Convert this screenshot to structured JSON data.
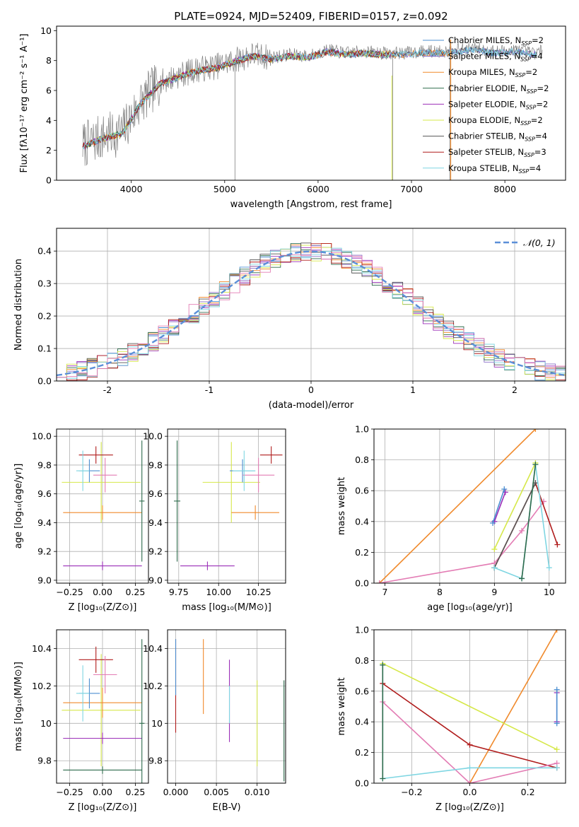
{
  "figure_title": "PLATE=0924, MJD=52409, FIBERID=0157, z=0.092",
  "colors": {
    "Chabrier MILES": "#4c8fd1",
    "Salpeter MILES": "#8a6fc7",
    "Kroupa MILES": "#f08a2c",
    "Chabrier ELODIE": "#2e6b4c",
    "Salpeter ELODIE": "#9b2fb8",
    "Kroupa ELODIE": "#d6e84a",
    "Chabrier STELIB": "#555555",
    "Salpeter STELIB": "#b01c1c",
    "Kroupa STELIB": "#7fd6e2",
    "pink": "#e37cb4",
    "gauss": "#5b8fd8"
  },
  "chart_data": [
    {
      "id": "spectrum",
      "type": "line",
      "title": "PLATE=0924, MJD=52409, FIBERID=0157, z=0.092",
      "xlabel": "wavelength [Angstrom, rest frame]",
      "ylabel": "Flux [fλ10⁻¹⁷ erg cm⁻² s⁻¹ A⁻¹]",
      "xlim": [
        3200,
        8650
      ],
      "ylim": [
        0,
        10.3
      ],
      "xticks": [
        4000,
        5000,
        6000,
        7000,
        8000
      ],
      "yticks": [
        0,
        2,
        4,
        6,
        8,
        10
      ],
      "data_x": [
        3500,
        3700,
        3900,
        4100,
        4300,
        4500,
        4700,
        4900,
        5100,
        5300,
        5500,
        5700,
        5900,
        6100,
        6300,
        6500,
        6700,
        6900,
        7100,
        7300,
        7500,
        7700,
        7900,
        8100,
        8300,
        8400
      ],
      "data_y": [
        2.4,
        2.9,
        3.2,
        5.2,
        6.5,
        7.0,
        7.4,
        7.6,
        8.0,
        8.4,
        8.2,
        8.4,
        8.3,
        8.7,
        8.5,
        8.6,
        8.5,
        8.5,
        8.6,
        8.6,
        8.7,
        8.8,
        8.6,
        8.7,
        8.5,
        8.6
      ],
      "legend": [
        {
          "label": "Chabrier MILES, N",
          "sub": "SSP",
          "suffix": "=2"
        },
        {
          "label": "Salpeter MILES, N",
          "sub": "SSP",
          "suffix": "=4"
        },
        {
          "label": "Kroupa MILES, N",
          "sub": "SSP",
          "suffix": "=2"
        },
        {
          "label": "Chabrier ELODIE, N",
          "sub": "SSP",
          "suffix": "=2"
        },
        {
          "label": "Salpeter ELODIE, N",
          "sub": "SSP",
          "suffix": "=2"
        },
        {
          "label": "Kroupa ELODIE, N",
          "sub": "SSP",
          "suffix": "=2"
        },
        {
          "label": "Chabrier STELIB, N",
          "sub": "SSP",
          "suffix": "=4"
        },
        {
          "label": "Salpeter STELIB, N",
          "sub": "SSP",
          "suffix": "=3"
        },
        {
          "label": "Kroupa STELIB, N",
          "sub": "SSP",
          "suffix": "=4"
        }
      ],
      "legend_placement": "right"
    },
    {
      "id": "residuals",
      "type": "line",
      "xlabel": "(data-model)/error",
      "ylabel": "Normed distribution",
      "xlim": [
        -2.5,
        2.5
      ],
      "ylim": [
        0,
        0.47
      ],
      "xticks": [
        -2,
        -1,
        0,
        1,
        2
      ],
      "yticks": [
        0.0,
        0.1,
        0.2,
        0.3,
        0.4
      ],
      "gaussian_label": "𝒩(0, 1)",
      "legend_placement": "top-right",
      "grid": true
    },
    {
      "id": "age_vs_Z",
      "type": "scatter",
      "xlabel": "Z [log₁₀(Z/Z⊙)]",
      "ylabel": "age  [log₁₀(age/yr)]",
      "xlim": [
        -0.35,
        0.35
      ],
      "ylim": [
        8.98,
        10.05
      ],
      "xticks": [
        -0.25,
        0.0,
        0.25
      ],
      "xtick_labels": [
        "−0.25",
        "0.00",
        "0.25"
      ],
      "yticks": [
        9.0,
        9.2,
        9.4,
        9.6,
        9.8,
        10.0
      ],
      "points": [
        {
          "x": -0.01,
          "y": 9.68,
          "xerr": 0.3,
          "yerr": 0.28,
          "c": "Kroupa ELODIE"
        },
        {
          "x": 0.0,
          "y": 9.47,
          "xerr": 0.3,
          "yerr": 0.05,
          "c": "Kroupa MILES"
        },
        {
          "x": -0.1,
          "y": 9.76,
          "xerr": 0.08,
          "yerr": 0.08,
          "c": "Chabrier MILES"
        },
        {
          "x": -0.05,
          "y": 9.87,
          "xerr": 0.13,
          "yerr": 0.06,
          "c": "Salpeter STELIB"
        },
        {
          "x": 0.02,
          "y": 9.73,
          "xerr": 0.09,
          "yerr": 0.12,
          "c": "pink"
        },
        {
          "x": -0.15,
          "y": 9.76,
          "xerr": 0.05,
          "yerr": 0.14,
          "c": "Kroupa STELIB"
        },
        {
          "x": 0.0,
          "y": 9.1,
          "xerr": 0.3,
          "yerr": 0.03,
          "c": "Salpeter ELODIE"
        },
        {
          "x": 0.3,
          "y": 9.55,
          "xerr": 0.02,
          "yerr": 0.42,
          "c": "Chabrier ELODIE"
        }
      ],
      "grid": true
    },
    {
      "id": "age_vs_mass",
      "type": "scatter",
      "xlabel": "mass [log₁₀(M/M⊙)]",
      "xlim": [
        9.68,
        10.42
      ],
      "ylim": [
        8.98,
        10.05
      ],
      "xticks": [
        9.75,
        10.0,
        10.25
      ],
      "xtick_labels": [
        "9.75",
        "10.00",
        "10.25"
      ],
      "yticks": [
        9.0,
        9.2,
        9.4,
        9.6,
        9.8,
        10.0
      ],
      "points": [
        {
          "x": 10.08,
          "y": 9.68,
          "xerr": 0.18,
          "yerr": 0.28,
          "c": "Kroupa ELODIE"
        },
        {
          "x": 10.23,
          "y": 9.47,
          "xerr": 0.15,
          "yerr": 0.05,
          "c": "Kroupa MILES"
        },
        {
          "x": 10.15,
          "y": 9.76,
          "xerr": 0.08,
          "yerr": 0.08,
          "c": "Chabrier MILES"
        },
        {
          "x": 10.33,
          "y": 9.87,
          "xerr": 0.07,
          "yerr": 0.06,
          "c": "Salpeter STELIB"
        },
        {
          "x": 10.25,
          "y": 9.73,
          "xerr": 0.1,
          "yerr": 0.12,
          "c": "pink"
        },
        {
          "x": 10.16,
          "y": 9.76,
          "xerr": 0.07,
          "yerr": 0.14,
          "c": "Kroupa STELIB"
        },
        {
          "x": 9.93,
          "y": 9.1,
          "xerr": 0.17,
          "yerr": 0.03,
          "c": "Salpeter ELODIE"
        },
        {
          "x": 9.74,
          "y": 9.55,
          "xerr": 0.02,
          "yerr": 0.42,
          "c": "Chabrier ELODIE"
        }
      ],
      "grid": true
    },
    {
      "id": "weight_vs_age",
      "type": "line",
      "xlabel": "age  [log₁₀(age/yr)]",
      "ylabel": "mass weight",
      "xlim": [
        6.8,
        10.3
      ],
      "ylim": [
        0,
        1.0
      ],
      "xticks": [
        7,
        8,
        9,
        10
      ],
      "yticks": [
        0.0,
        0.2,
        0.4,
        0.6,
        0.8,
        1.0
      ],
      "series": [
        {
          "c": "Kroupa MILES",
          "x": [
            6.9,
            9.75
          ],
          "y": [
            0.0,
            1.0
          ]
        },
        {
          "c": "pink",
          "x": [
            6.9,
            9.0,
            9.5,
            9.9
          ],
          "y": [
            0.0,
            0.13,
            0.34,
            0.53
          ]
        },
        {
          "c": "Kroupa ELODIE",
          "x": [
            9.0,
            9.75
          ],
          "y": [
            0.22,
            0.78
          ]
        },
        {
          "c": "Salpeter STELIB",
          "x": [
            9.0,
            9.75,
            10.15
          ],
          "y": [
            0.1,
            0.65,
            0.25
          ]
        },
        {
          "c": "Chabrier STELIB",
          "x": [
            9.0,
            9.75
          ],
          "y": [
            0.1,
            0.65
          ]
        },
        {
          "c": "Kroupa STELIB",
          "x": [
            9.0,
            9.5,
            9.75,
            10.0
          ],
          "y": [
            0.1,
            0.03,
            0.77,
            0.1
          ]
        },
        {
          "c": "Chabrier ELODIE",
          "x": [
            9.5,
            9.75
          ],
          "y": [
            0.03,
            0.77
          ]
        },
        {
          "c": "Salpeter ELODIE",
          "x": [
            9.0,
            9.2
          ],
          "y": [
            0.4,
            0.59
          ]
        },
        {
          "c": "Chabrier MILES",
          "x": [
            8.97,
            9.18
          ],
          "y": [
            0.39,
            0.61
          ]
        }
      ],
      "grid": true
    },
    {
      "id": "mass_vs_Z",
      "type": "scatter",
      "xlabel": "Z [log₁₀(Z/Z⊙)]",
      "ylabel": "mass [log₁₀(M/M⊙)]",
      "xlim": [
        -0.35,
        0.35
      ],
      "ylim": [
        9.68,
        10.5
      ],
      "xticks": [
        -0.25,
        0.0,
        0.25
      ],
      "xtick_labels": [
        "−0.25",
        "0.00",
        "0.25"
      ],
      "yticks": [
        9.8,
        10.0,
        10.2,
        10.4
      ],
      "points": [
        {
          "x": -0.01,
          "y": 10.07,
          "xerr": 0.3,
          "yerr": 0.3,
          "c": "Kroupa ELODIE"
        },
        {
          "x": 0.0,
          "y": 10.11,
          "xerr": 0.3,
          "yerr": 0.08,
          "c": "Kroupa MILES"
        },
        {
          "x": -0.1,
          "y": 10.16,
          "xerr": 0.08,
          "yerr": 0.08,
          "c": "Chabrier MILES"
        },
        {
          "x": -0.05,
          "y": 10.34,
          "xerr": 0.13,
          "yerr": 0.07,
          "c": "Salpeter STELIB"
        },
        {
          "x": 0.02,
          "y": 10.26,
          "xerr": 0.09,
          "yerr": 0.1,
          "c": "pink"
        },
        {
          "x": -0.15,
          "y": 10.16,
          "xerr": 0.05,
          "yerr": 0.15,
          "c": "Kroupa STELIB"
        },
        {
          "x": 0.0,
          "y": 9.92,
          "xerr": 0.3,
          "yerr": 0.03,
          "c": "Salpeter ELODIE"
        },
        {
          "x": 0.0,
          "y": 9.75,
          "xerr": 0.3,
          "yerr": 0.02,
          "c": "Chabrier ELODIE"
        },
        {
          "x": 0.3,
          "y": 10.0,
          "xerr": 0.02,
          "yerr": 0.45,
          "c": "Chabrier ELODIE"
        }
      ],
      "grid": true
    },
    {
      "id": "mass_vs_ebv",
      "type": "scatter",
      "xlabel": "E(B-V)",
      "xlim": [
        -0.001,
        0.0135
      ],
      "ylim": [
        9.68,
        10.5
      ],
      "xticks": [
        0.0,
        0.005,
        0.01
      ],
      "xtick_labels": [
        "0.000",
        "0.005",
        "0.010"
      ],
      "yticks": [
        9.8,
        10.0,
        10.2,
        10.4
      ],
      "points": [
        {
          "x": 0.0,
          "y": 10.2,
          "yerr": 0.25,
          "c": "Salpeter STELIB"
        },
        {
          "x": 0.0,
          "y": 10.3,
          "yerr": 0.15,
          "c": "Chabrier MILES"
        },
        {
          "x": 0.0034,
          "y": 10.25,
          "yerr": 0.2,
          "c": "Kroupa MILES"
        },
        {
          "x": 0.0066,
          "y": 10.12,
          "yerr": 0.22,
          "c": "Salpeter ELODIE"
        },
        {
          "x": 0.0066,
          "y": 10.1,
          "yerr": 0.1,
          "c": "Kroupa STELIB"
        },
        {
          "x": 0.01,
          "y": 10.0,
          "yerr": 0.23,
          "c": "Kroupa ELODIE"
        },
        {
          "x": 0.0133,
          "y": 9.96,
          "yerr": 0.27,
          "c": "Chabrier ELODIE"
        }
      ],
      "grid": true
    },
    {
      "id": "weight_vs_Z",
      "type": "line",
      "xlabel": "Z [log₁₀(Z/Z⊙)]",
      "ylabel": "mass weight",
      "xlim": [
        -0.33,
        0.33
      ],
      "ylim": [
        0,
        1.0
      ],
      "xticks": [
        -0.2,
        0.0,
        0.2
      ],
      "xtick_labels": [
        "−0.2",
        "0.0",
        "0.2"
      ],
      "yticks": [
        0.0,
        0.2,
        0.4,
        0.6,
        0.8,
        1.0
      ],
      "series": [
        {
          "c": "Kroupa MILES",
          "x": [
            0.0,
            0.3
          ],
          "y": [
            0.0,
            1.0
          ]
        },
        {
          "c": "Kroupa ELODIE",
          "x": [
            -0.3,
            0.3
          ],
          "y": [
            0.78,
            0.22
          ]
        },
        {
          "c": "Salpeter STELIB",
          "x": [
            -0.3,
            0.0,
            0.3
          ],
          "y": [
            0.65,
            0.25,
            0.1
          ]
        },
        {
          "c": "pink",
          "x": [
            -0.3,
            0.0,
            0.3
          ],
          "y": [
            0.53,
            0.0,
            0.13
          ]
        },
        {
          "c": "Kroupa STELIB",
          "x": [
            -0.3,
            -0.3,
            0.0,
            0.3
          ],
          "y": [
            0.77,
            0.03,
            0.1,
            0.1
          ]
        },
        {
          "c": "Chabrier ELODIE",
          "x": [
            -0.3,
            -0.3
          ],
          "y": [
            0.03,
            0.77
          ]
        },
        {
          "c": "Salpeter ELODIE",
          "x": [
            0.3,
            0.3
          ],
          "y": [
            0.4,
            0.59
          ]
        },
        {
          "c": "Chabrier MILES",
          "x": [
            0.3,
            0.3
          ],
          "y": [
            0.39,
            0.61
          ]
        }
      ],
      "grid": true
    }
  ]
}
